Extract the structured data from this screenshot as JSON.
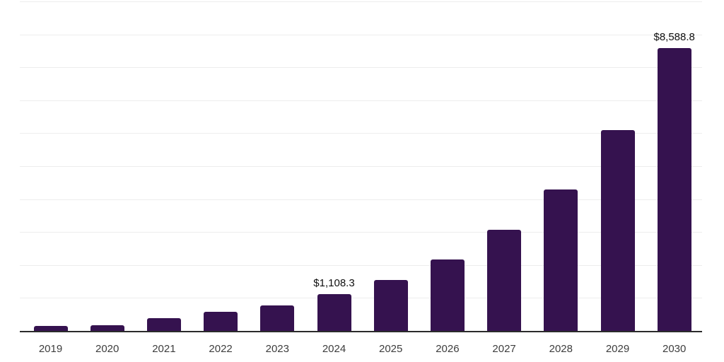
{
  "chart_data": {
    "type": "bar",
    "title": "",
    "xlabel": "",
    "ylabel": "",
    "categories": [
      "2019",
      "2020",
      "2021",
      "2022",
      "2023",
      "2024",
      "2025",
      "2026",
      "2027",
      "2028",
      "2029",
      "2030"
    ],
    "values": [
      140,
      180,
      385,
      575,
      770,
      1108.3,
      1540,
      2165,
      3060,
      4300,
      6090,
      8588.8
    ],
    "data_labels": [
      "",
      "",
      "",
      "",
      "",
      "$1,108.3",
      "",
      "",
      "",
      "",
      "",
      "$8,588.8"
    ],
    "ylim": [
      0,
      10000
    ],
    "gridline_step": 1000,
    "grid": "horizontal-only",
    "legend": "none",
    "colors": {
      "bar": "#35124F",
      "axis_line": "#2b2b2b",
      "gridline": "#ededed",
      "tick_label": "#3d3d3d",
      "value_label": "#0f0f0f",
      "background": "#ffffff"
    }
  }
}
